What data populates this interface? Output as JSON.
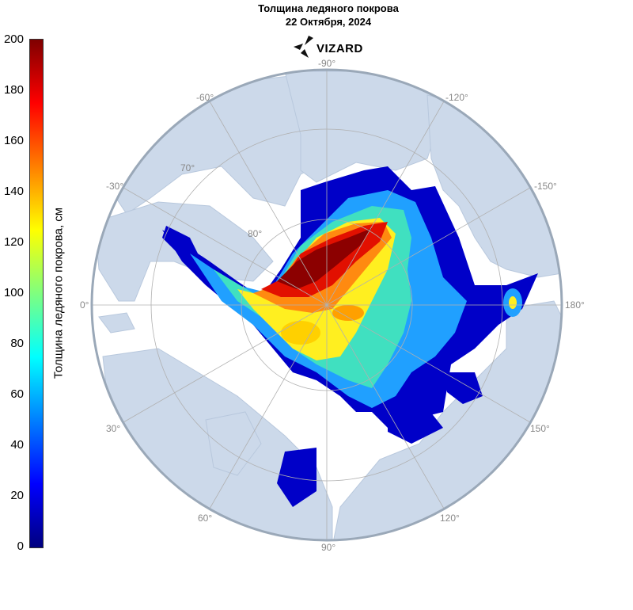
{
  "title": {
    "line1": "Толщина ледяного покрова",
    "line2": "22 Октября, 2024"
  },
  "logo": {
    "text": "VIZARD"
  },
  "colorbar": {
    "label": "Толщина ледяного покрова, см",
    "ticks": [
      "200",
      "180",
      "160",
      "140",
      "120",
      "100",
      "80",
      "60",
      "40",
      "20",
      "0"
    ],
    "min": 0,
    "max": 200,
    "colors": [
      "#00007f",
      "#0000ff",
      "#007fff",
      "#00ffff",
      "#7fff7f",
      "#ffff00",
      "#ff7f00",
      "#ff0000",
      "#7f0000"
    ]
  },
  "map": {
    "projection": "polar stereographic (North Pole)",
    "longitude_labels": [
      "-90°",
      "-60°",
      "-120°",
      "-30°",
      "-150°",
      "0°",
      "180°",
      "30°",
      "150°",
      "60°",
      "120°",
      "90°"
    ],
    "latitude_labels": [
      "70°",
      "80°"
    ],
    "land_color": "#ccd9ea",
    "ocean_color": "#ffffff"
  }
}
